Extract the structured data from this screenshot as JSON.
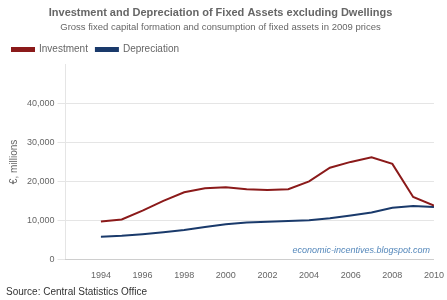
{
  "chart_data": {
    "type": "line",
    "title": "Investment and Depreciation of Fixed Assets excluding Dwellings",
    "subtitle": "Gross fixed capital formation and consumption of fixed assets in 2009 prices",
    "ylabel": "€, millions",
    "source": "Source: Central Statistics Office",
    "watermark": "economic-incentives.blogspot.com",
    "x": [
      1994,
      1995,
      1996,
      1997,
      1998,
      1999,
      2000,
      2001,
      2002,
      2003,
      2004,
      2005,
      2006,
      2007,
      2008,
      2009,
      2010
    ],
    "series": [
      {
        "name": "Investment",
        "color": "#8b1a1a",
        "values": [
          9700,
          10200,
          12500,
          15000,
          17200,
          18200,
          18500,
          18000,
          17800,
          18000,
          20000,
          23500,
          25000,
          26200,
          24500,
          16000,
          13800
        ]
      },
      {
        "name": "Depreciation",
        "color": "#1a3a6b",
        "values": [
          5800,
          6000,
          6400,
          6900,
          7500,
          8300,
          9000,
          9400,
          9600,
          9800,
          10000,
          10500,
          11200,
          12000,
          13200,
          13700,
          13400
        ]
      }
    ],
    "xlim": [
      1992.3,
      2010
    ],
    "xticks": [
      1994,
      1996,
      1998,
      2000,
      2002,
      2004,
      2006,
      2008,
      2010
    ],
    "ylim": [
      0,
      50000
    ],
    "yticks": [
      0,
      {
        "value": 10000,
        "label": "10,000"
      },
      {
        "value": 20000,
        "label": "20,000"
      },
      {
        "value": 30000,
        "label": "30,000"
      },
      {
        "value": 40000,
        "label": "40,000"
      }
    ],
    "grid": true,
    "legend": "upper left"
  }
}
